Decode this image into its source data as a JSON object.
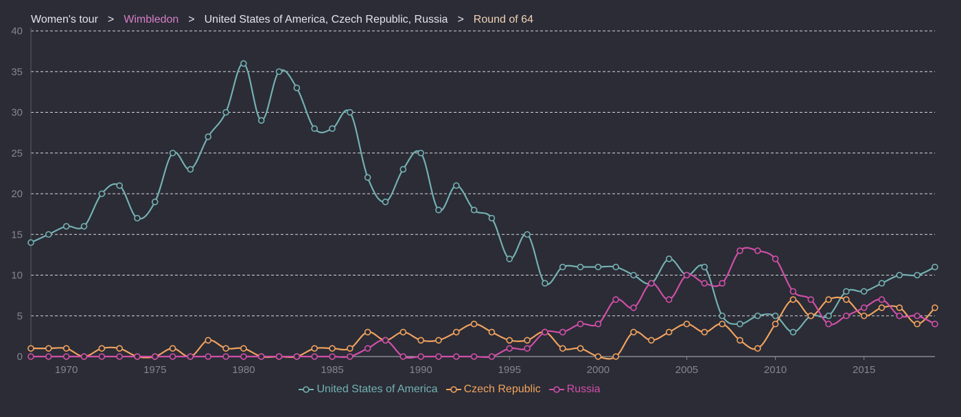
{
  "breadcrumb": {
    "items": [
      {
        "label": "Women's tour",
        "color": "#e4e4ea"
      },
      {
        "label": "Wimbledon",
        "color": "#d77fc9"
      },
      {
        "label": "United States of America, Czech Republic, Russia",
        "color": "#e4e4ea"
      },
      {
        "label": "Round of 64",
        "color": "#f2d3b6"
      }
    ],
    "separator": ">"
  },
  "chart_data": {
    "type": "line",
    "title": "",
    "xlabel": "",
    "ylabel": "",
    "xlim": [
      1968,
      2019
    ],
    "ylim": [
      0,
      40
    ],
    "xticks": [
      1970,
      1975,
      1980,
      1985,
      1990,
      1995,
      2000,
      2005,
      2010,
      2015
    ],
    "yticks": [
      0,
      5,
      10,
      15,
      20,
      25,
      30,
      35,
      40
    ],
    "grid": "horizontal dashed",
    "legend": "bottom-center",
    "x": [
      1968,
      1969,
      1970,
      1971,
      1972,
      1973,
      1974,
      1975,
      1976,
      1977,
      1978,
      1979,
      1980,
      1981,
      1982,
      1983,
      1984,
      1985,
      1986,
      1987,
      1988,
      1989,
      1990,
      1991,
      1992,
      1993,
      1994,
      1995,
      1996,
      1997,
      1998,
      1999,
      2000,
      2001,
      2002,
      2003,
      2004,
      2005,
      2006,
      2007,
      2008,
      2009,
      2010,
      2011,
      2012,
      2013,
      2014,
      2015,
      2016,
      2017,
      2018,
      2019
    ],
    "series": [
      {
        "name": "United States of America",
        "color": "#74b1b2",
        "values": [
          14,
          15,
          16,
          16,
          20,
          21,
          17,
          19,
          25,
          23,
          27,
          30,
          36,
          29,
          35,
          33,
          28,
          28,
          30,
          22,
          19,
          23,
          25,
          18,
          21,
          18,
          17,
          12,
          15,
          9,
          11,
          11,
          11,
          11,
          10,
          9,
          12,
          10,
          11,
          5,
          4,
          5,
          5,
          3,
          5,
          5,
          8,
          8,
          9,
          10,
          10,
          11
        ]
      },
      {
        "name": "Czech Republic",
        "color": "#f2a35e",
        "values": [
          1,
          1,
          1,
          0,
          1,
          1,
          0,
          0,
          1,
          0,
          2,
          1,
          1,
          0,
          0,
          0,
          1,
          1,
          1,
          3,
          2,
          3,
          2,
          2,
          3,
          4,
          3,
          2,
          2,
          3,
          1,
          1,
          0,
          0,
          3,
          2,
          3,
          4,
          3,
          4,
          2,
          1,
          4,
          7,
          5,
          7,
          7,
          5,
          6,
          6,
          4,
          6
        ]
      },
      {
        "name": "Russia",
        "color": "#d24fa9",
        "values": [
          0,
          0,
          0,
          0,
          0,
          0,
          0,
          0,
          0,
          0,
          0,
          0,
          0,
          0,
          0,
          0,
          0,
          0,
          0,
          1,
          2,
          0,
          0,
          0,
          0,
          0,
          0,
          1,
          1,
          3,
          3,
          4,
          4,
          7,
          6,
          9,
          7,
          10,
          9,
          9,
          13,
          13,
          12,
          8,
          7,
          4,
          5,
          6,
          7,
          5,
          5,
          4
        ]
      }
    ]
  }
}
